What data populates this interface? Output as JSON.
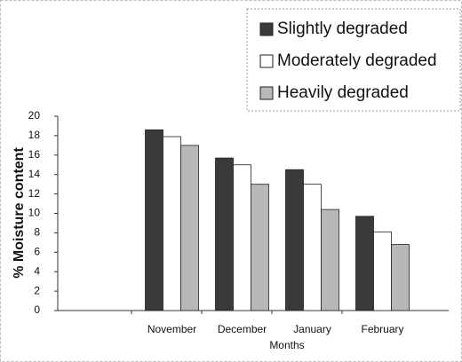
{
  "chart_data": {
    "type": "bar",
    "x_label": "Months",
    "y_label": "% Moisture content",
    "categories": [
      null,
      "November",
      "December",
      "January",
      "February"
    ],
    "series": [
      {
        "name": "Slightly degraded",
        "color": "#3a3a3a",
        "values": [
          null,
          18.6,
          15.7,
          14.5,
          9.7
        ]
      },
      {
        "name": "Moderately degraded",
        "color": "#ffffff",
        "values": [
          null,
          17.9,
          15.0,
          13.0,
          8.1
        ]
      },
      {
        "name": "Heavily degraded",
        "color": "#b8b8b8",
        "values": [
          null,
          17.0,
          13.0,
          10.4,
          6.8
        ]
      }
    ],
    "ylim": [
      0,
      20
    ],
    "yticks": [
      0,
      2,
      4,
      6,
      8,
      10,
      12,
      14,
      16,
      18,
      20
    ]
  }
}
